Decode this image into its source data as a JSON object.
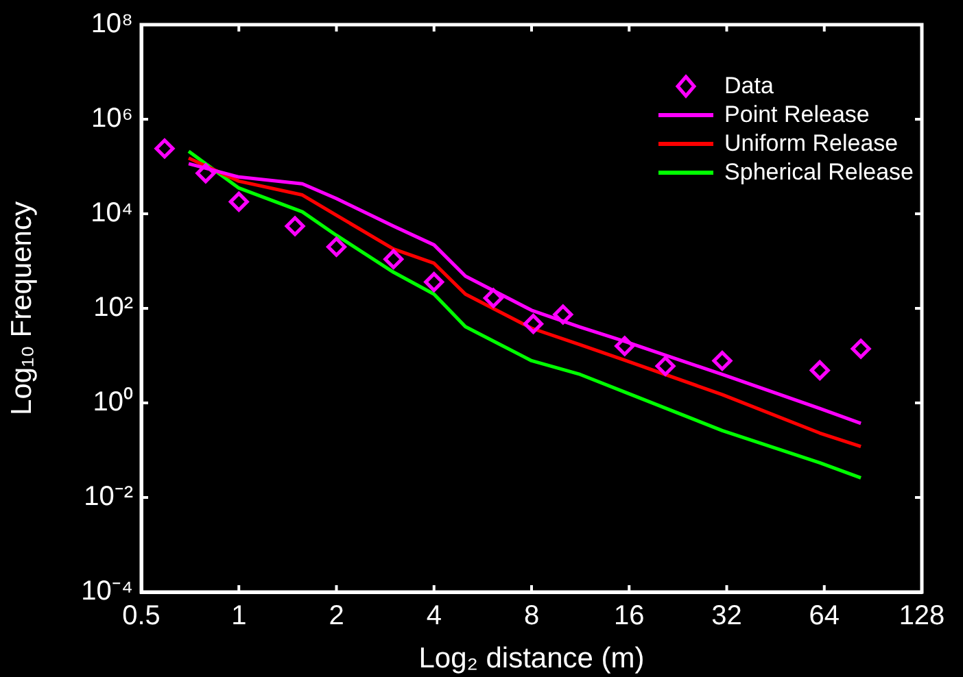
{
  "chart_data": {
    "type": "line",
    "xlabel": "Log₂ distance (m)",
    "ylabel": "Log₁₀ Frequency",
    "log": "xy",
    "grid": false,
    "legend": "top right",
    "xlim": [
      0.5,
      128
    ],
    "xticks": [
      0.5,
      1,
      2,
      4,
      8,
      16,
      32,
      64,
      128
    ],
    "ylim": [
      0.0001,
      100000000
    ],
    "yticks": [
      {
        "value": 0.0001,
        "label": "10⁻⁴"
      },
      {
        "value": 0.01,
        "label": "10⁻²"
      },
      {
        "value": 1,
        "label": "10⁰"
      },
      {
        "value": 100,
        "label": "10²"
      },
      {
        "value": 10000,
        "label": "10⁴"
      },
      {
        "value": 1000000,
        "label": "10⁶"
      },
      {
        "value": 100000000,
        "label": "10⁸"
      }
    ],
    "series": [
      {
        "name": "Data",
        "type": "scatter",
        "marker": "diamond",
        "color": "#ff00ff",
        "x": [
          0.59,
          0.79,
          1,
          1.49,
          2,
          3,
          4,
          6.1,
          8.1,
          10,
          15.5,
          20.7,
          31,
          62,
          83
        ],
        "values": [
          240000,
          72000,
          18000,
          5500,
          2000,
          1100,
          360,
          165,
          47,
          74,
          16,
          6,
          7.8,
          4.9,
          14
        ]
      },
      {
        "name": "Point Release",
        "type": "line",
        "marker": "none",
        "color": "#ff00ff",
        "x": [
          0.7,
          1,
          1.57,
          2,
          3,
          4,
          5,
          8,
          11.3,
          15.5,
          31,
          62,
          83
        ],
        "values": [
          115000,
          60000,
          43000,
          21000,
          5500,
          2200,
          480,
          91,
          40,
          20,
          4,
          0.76,
          0.37
        ]
      },
      {
        "name": "Uniform Release",
        "type": "line",
        "marker": "none",
        "color": "#ff0000",
        "x": [
          0.7,
          1,
          1.57,
          2,
          3,
          4,
          5,
          8,
          11.3,
          15.5,
          31,
          62,
          83
        ],
        "values": [
          150000,
          49000,
          25000,
          9300,
          1800,
          900,
          200,
          38,
          17,
          8,
          1.5,
          0.23,
          0.12
        ]
      },
      {
        "name": "Spherical Release",
        "type": "line",
        "marker": "none",
        "color": "#00ff00",
        "x": [
          0.7,
          1,
          1.57,
          2,
          3,
          4,
          5,
          8,
          11.3,
          15.5,
          31,
          62,
          83
        ],
        "values": [
          210000,
          35000,
          11000,
          3500,
          580,
          200,
          41,
          7.8,
          4,
          1.7,
          0.26,
          0.054,
          0.026
        ]
      }
    ]
  }
}
